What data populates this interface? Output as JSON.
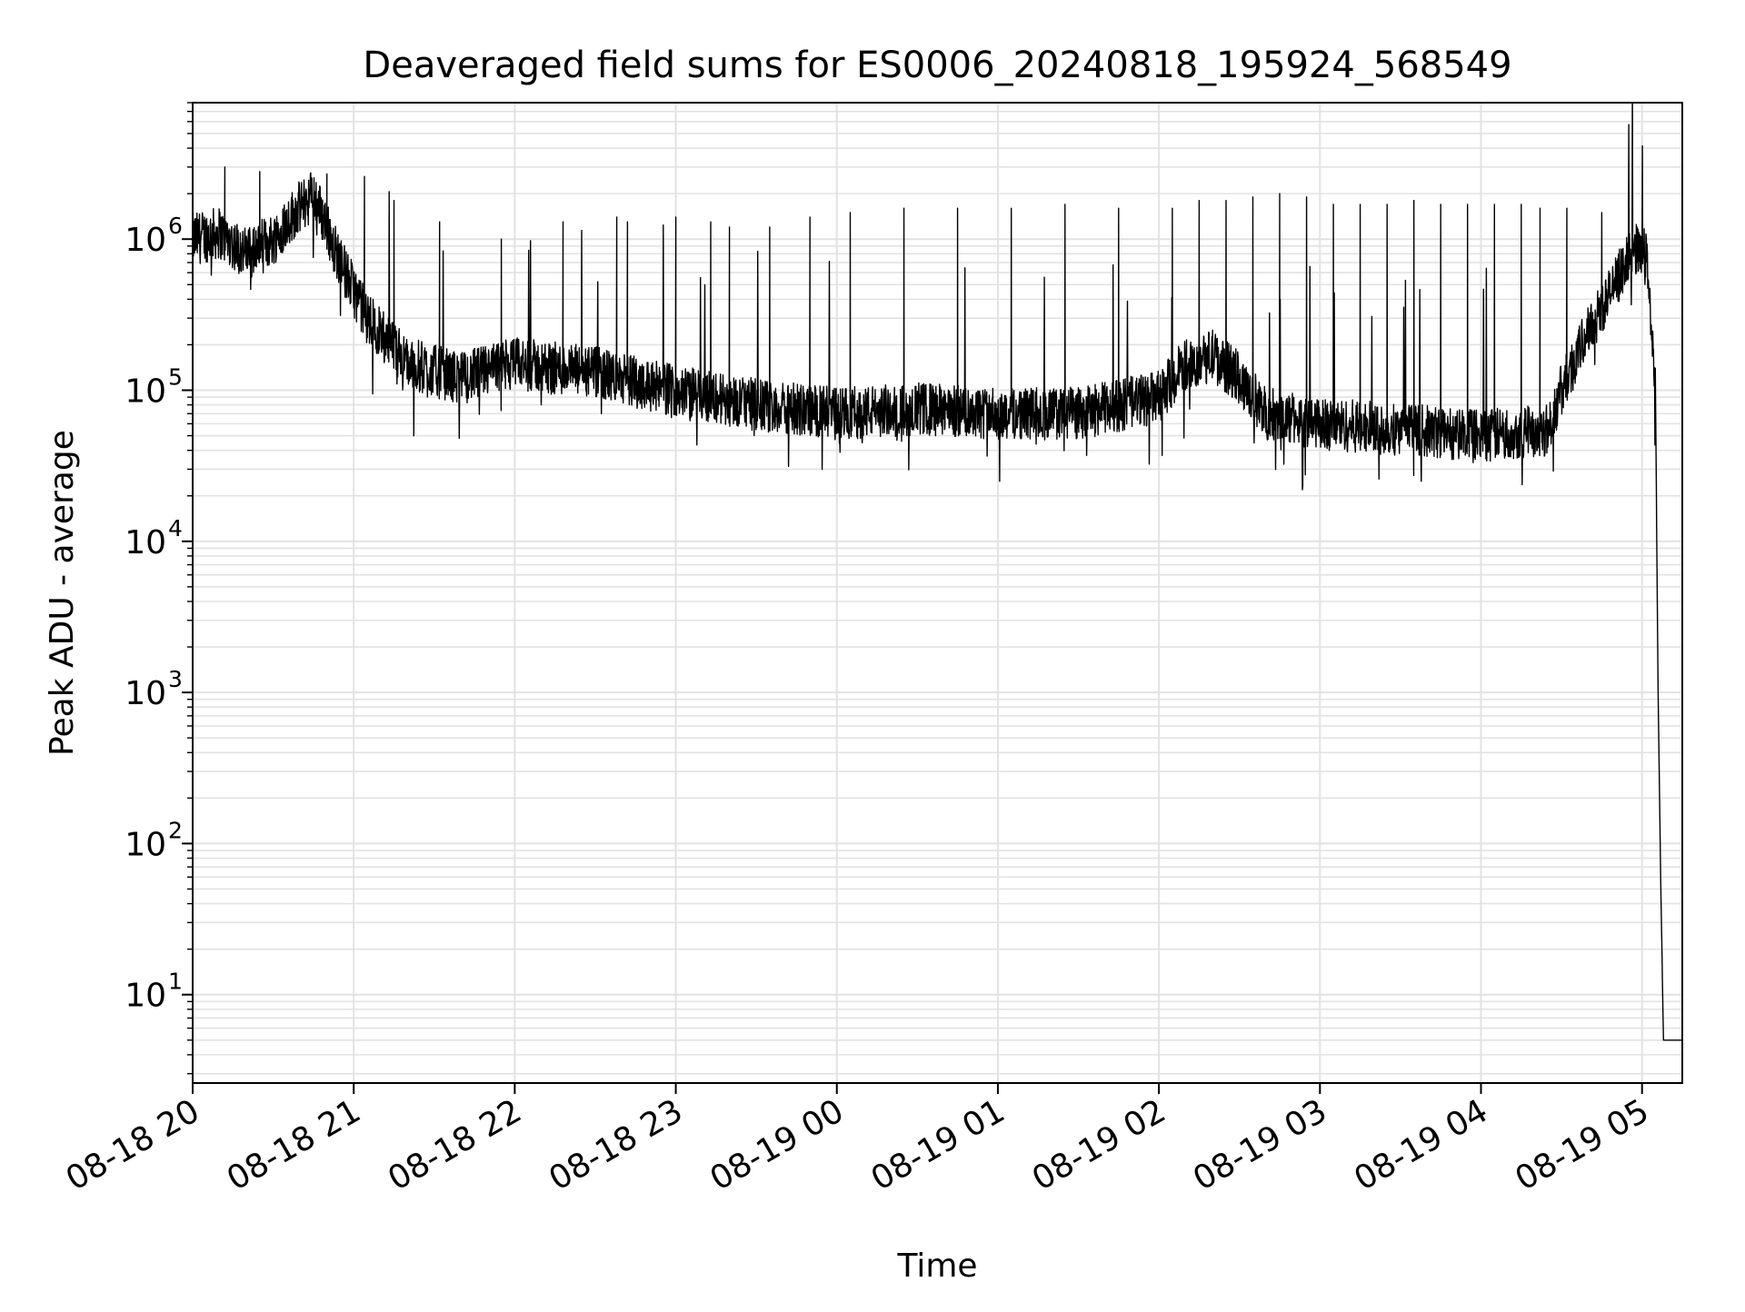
{
  "chart_data": {
    "type": "line",
    "title": "Deaveraged field sums for ES0006_20240818_195924_568549",
    "xlabel": "Time",
    "ylabel": "Peak ADU - average",
    "x_scale": "time",
    "y_scale": "log",
    "xlim": [
      "2024-08-18 20:00",
      "2024-08-19 05:15"
    ],
    "ylim": [
      2.6,
      8000000
    ],
    "x_ticks": [
      "08-18 20",
      "08-18 21",
      "08-18 22",
      "08-18 23",
      "08-19 00",
      "08-19 01",
      "08-19 02",
      "08-19 03",
      "08-19 04",
      "08-19 05"
    ],
    "y_ticks": [
      {
        "base": "10",
        "exp": "1"
      },
      {
        "base": "10",
        "exp": "2"
      },
      {
        "base": "10",
        "exp": "3"
      },
      {
        "base": "10",
        "exp": "4"
      },
      {
        "base": "10",
        "exp": "5"
      },
      {
        "base": "10",
        "exp": "6"
      }
    ],
    "grid": "major and minor",
    "line_color": "#000000",
    "series": [
      {
        "baseline": {
          "x": [
            "2024-08-18 20:00",
            "2024-08-18 20:10",
            "2024-08-18 20:20",
            "2024-08-18 20:30",
            "2024-08-18 20:38",
            "2024-08-18 20:45",
            "2024-08-18 20:50",
            "2024-08-18 20:55",
            "2024-08-18 21:05",
            "2024-08-18 21:20",
            "2024-08-18 21:40",
            "2024-08-18 22:00",
            "2024-08-18 22:30",
            "2024-08-18 23:00",
            "2024-08-18 23:30",
            "2024-08-19 00:00",
            "2024-08-19 00:30",
            "2024-08-19 01:00",
            "2024-08-19 01:30",
            "2024-08-19 02:00",
            "2024-08-19 02:10",
            "2024-08-19 02:20",
            "2024-08-19 02:30",
            "2024-08-19 02:40",
            "2024-08-19 03:00",
            "2024-08-19 03:30",
            "2024-08-19 04:00",
            "2024-08-19 04:25",
            "2024-08-19 04:30",
            "2024-08-19 04:40",
            "2024-08-19 04:50",
            "2024-08-19 04:55",
            "2024-08-19 05:00",
            "2024-08-19 05:02",
            "2024-08-19 05:05",
            "2024-08-19 05:06",
            "2024-08-19 05:07",
            "2024-08-19 05:08",
            "2024-08-19 05:09",
            "2024-08-19 05:15"
          ],
          "y": [
            1000000,
            1100000,
            800000,
            1000000,
            1500000,
            2000000,
            1200000,
            700000,
            300000,
            150000,
            120000,
            150000,
            130000,
            100000,
            80000,
            70000,
            75000,
            70000,
            70000,
            90000,
            150000,
            170000,
            120000,
            70000,
            60000,
            55000,
            50000,
            55000,
            100000,
            250000,
            500000,
            800000,
            900000,
            700000,
            100000,
            1000,
            50,
            5,
            5,
            5
          ]
        },
        "spikes": {
          "x": [
            "2024-08-18 20:12",
            "2024-08-18 20:25",
            "2024-08-18 20:50",
            "2024-08-18 21:04",
            "2024-08-18 21:15",
            "2024-08-18 21:32",
            "2024-08-18 21:55",
            "2024-08-18 22:18",
            "2024-08-18 22:38",
            "2024-08-18 22:42",
            "2024-08-18 23:00",
            "2024-08-18 23:13",
            "2024-08-18 23:20",
            "2024-08-18 23:35",
            "2024-08-18 23:50",
            "2024-08-19 00:05",
            "2024-08-19 00:25",
            "2024-08-19 00:45",
            "2024-08-19 01:05",
            "2024-08-19 01:25",
            "2024-08-19 01:45",
            "2024-08-19 02:05",
            "2024-08-19 02:15",
            "2024-08-19 02:25",
            "2024-08-19 02:35",
            "2024-08-19 02:45",
            "2024-08-19 02:55",
            "2024-08-19 03:05",
            "2024-08-19 03:15",
            "2024-08-19 03:25",
            "2024-08-19 03:35",
            "2024-08-19 03:45",
            "2024-08-19 03:55",
            "2024-08-19 04:05",
            "2024-08-19 04:15",
            "2024-08-19 04:22",
            "2024-08-19 04:32",
            "2024-08-19 04:45"
          ],
          "y": [
            3000000,
            2800000,
            2700000,
            2600000,
            1800000,
            1300000,
            1000000,
            1300000,
            1400000,
            1300000,
            1400000,
            1300000,
            1200000,
            1200000,
            1400000,
            1500000,
            1600000,
            1600000,
            1600000,
            1700000,
            1600000,
            1600000,
            1800000,
            1800000,
            1900000,
            2000000,
            1900000,
            1700000,
            1700000,
            1700000,
            1800000,
            1700000,
            1700000,
            1700000,
            1700000,
            1600000,
            1600000,
            1500000
          ]
        }
      }
    ]
  }
}
